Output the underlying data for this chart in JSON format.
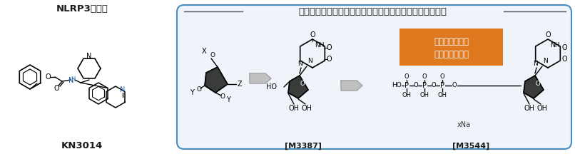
{
  "bg_color": "#ffffff",
  "left_panel": {
    "title": "NLRP3阻害剤",
    "subtitle": "KN3014",
    "title_color": "#1a1a1a",
    "subtitle_color": "#1a1a1a"
  },
  "right_panel": {
    "border_color": "#4a8fbc",
    "bg_color": "#eef4f9",
    "header": "修飾塩基を有するヌクレオシド合成およびミリン酸化の例",
    "header_color": "#1a1a1a",
    "label1": "[M3387]",
    "label2": "[M3544]",
    "label_color": "#1a1a1a",
    "orange_box_line1": "機能性試験にて",
    "orange_box_line2": "転写能を確認！",
    "orange_box_color": "#e07820",
    "orange_text_color": "#ffffff",
    "arrow_color": "#b0b0b0",
    "xNa_text": "xNa",
    "xNa_color": "#333333"
  },
  "figsize": [
    8.06,
    2.16
  ],
  "dpi": 100
}
